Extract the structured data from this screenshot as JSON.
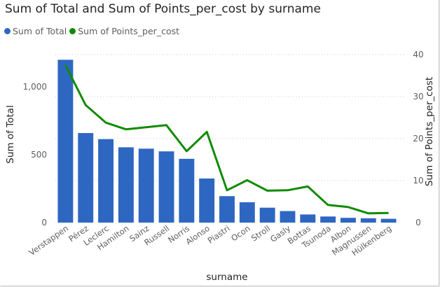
{
  "title": "Sum of Total and Sum of Points_per_cost by surname",
  "legend": {
    "total_label": "Sum of Total",
    "ppc_label": "Sum of Points_per_cost"
  },
  "colors": {
    "bar": "#2E67C2",
    "line": "#108B00",
    "grid": "#c8c8c8",
    "tick_text": "#605e5c",
    "axis_title": "#252423"
  },
  "chart_data": {
    "type": "bar+line",
    "title": "Sum of Total and Sum of Points_per_cost by surname",
    "xlabel": "surname",
    "ylabel_left": "Sum of Total",
    "ylabel_right": "Sum of Points_per_cost",
    "categories": [
      "Verstappen",
      "Pérez",
      "Leclerc",
      "Hamilton",
      "Sainz",
      "Russell",
      "Norris",
      "Alonso",
      "Piastri",
      "Ocon",
      "Stroll",
      "Gasly",
      "Bottas",
      "Tsunoda",
      "Albon",
      "Magnussen",
      "Hülkenberg"
    ],
    "series": [
      {
        "name": "Sum of Total",
        "type": "bar",
        "axis": "left",
        "values": [
          1200,
          660,
          615,
          555,
          545,
          525,
          470,
          325,
          195,
          150,
          110,
          85,
          60,
          45,
          35,
          32,
          28
        ]
      },
      {
        "name": "Sum of Points_per_cost",
        "type": "line",
        "axis": "right",
        "values": [
          37.5,
          28.0,
          23.8,
          22.2,
          22.7,
          23.2,
          17.0,
          21.6,
          7.7,
          10.1,
          7.6,
          7.7,
          8.6,
          4.2,
          3.7,
          2.2,
          2.3
        ]
      }
    ],
    "ylim_left": [
      0,
      1300
    ],
    "yticks_left": [
      0,
      500,
      1000
    ],
    "yticks_left_labels": [
      "0",
      "500",
      "1,000"
    ],
    "ylim_right": [
      0,
      42
    ],
    "yticks_right": [
      0,
      10,
      20,
      30,
      40
    ],
    "yticks_right_labels": [
      "0",
      "10",
      "20",
      "30",
      "40"
    ],
    "grid": "dotted horizontal",
    "legend_position": "top-left"
  }
}
